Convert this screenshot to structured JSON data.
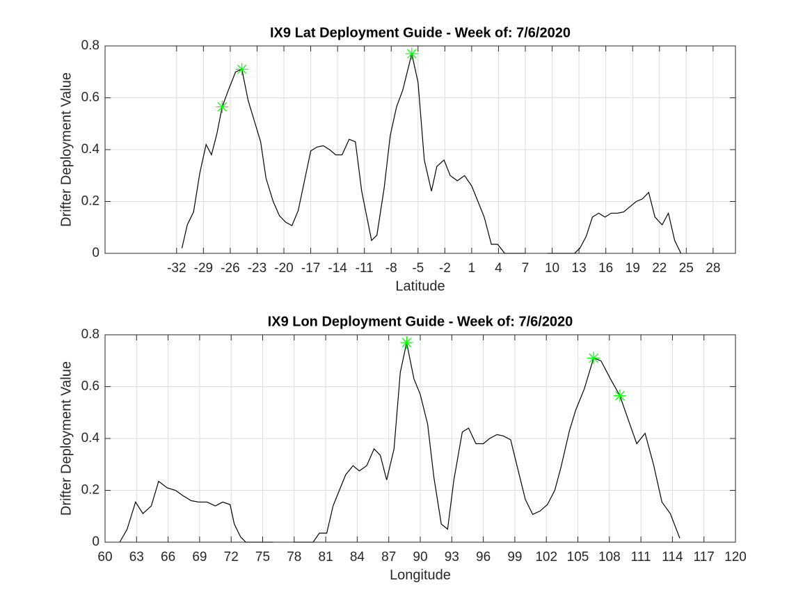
{
  "chart_data": [
    {
      "type": "line",
      "title": "IX9 Lat Deployment Guide - Week of: 7/6/2020",
      "x_label": "Latitude",
      "y_label": "Drifter Deployment Value",
      "xlim": [
        -40,
        30.5
      ],
      "xticks": [
        -32,
        -29,
        -26,
        -23,
        -20,
        -17,
        -14,
        -11,
        -8,
        -5,
        -2,
        1,
        4,
        7,
        10,
        13,
        16,
        19,
        22,
        25,
        28
      ],
      "ylim": [
        0,
        0.8
      ],
      "yticks": [
        0,
        0.2,
        0.4,
        0.6,
        0.8
      ],
      "grid": true,
      "color": "#000000",
      "x": [
        -31.4,
        -30.8,
        -30.1,
        -29.4,
        -28.7,
        -28.1,
        -27.5,
        -26.9,
        -26.2,
        -25.4,
        -24.7,
        -24.0,
        -23.3,
        -22.6,
        -22.0,
        -21.2,
        -20.5,
        -19.8,
        -19.1,
        -18.4,
        -17.7,
        -17.0,
        -16.3,
        -15.6,
        -14.9,
        -14.2,
        -13.5,
        -12.7,
        -12.0,
        -11.3,
        -10.2,
        -9.6,
        -8.8,
        -8.1,
        -7.4,
        -6.7,
        -5.7,
        -5.0,
        -4.3,
        -3.5,
        -2.9,
        -2.1,
        -1.4,
        -0.6,
        0.2,
        1.0,
        1.7,
        2.4,
        3.2,
        3.9,
        4.7,
        5.5,
        6.3,
        7.0,
        null,
        9.5,
        10.2,
        11.0,
        11.7,
        12.5,
        13.1,
        13.8,
        14.5,
        15.2,
        15.9,
        16.6,
        17.3,
        18.0,
        18.7,
        19.4,
        20.1,
        20.8,
        21.5,
        22.3,
        23.0,
        23.7,
        24.4
      ],
      "values": [
        0.02,
        0.11,
        0.16,
        0.31,
        0.42,
        0.38,
        0.46,
        0.565,
        0.63,
        0.7,
        0.71,
        0.59,
        0.51,
        0.43,
        0.29,
        0.2,
        0.145,
        0.12,
        0.107,
        0.165,
        0.28,
        0.395,
        0.41,
        0.415,
        0.4,
        0.38,
        0.38,
        0.44,
        0.43,
        0.24,
        0.05,
        0.07,
        0.25,
        0.455,
        0.565,
        0.63,
        0.77,
        0.66,
        0.36,
        0.24,
        0.335,
        0.36,
        0.3,
        0.28,
        0.3,
        0.26,
        0.2,
        0.14,
        0.035,
        0.035,
        0,
        0,
        0,
        0,
        null,
        0,
        0,
        0,
        0,
        0,
        0.02,
        0.065,
        0.14,
        0.155,
        0.14,
        0.155,
        0.155,
        0.16,
        0.18,
        0.2,
        0.21,
        0.235,
        0.14,
        0.11,
        0.155,
        0.05,
        0
      ],
      "markers": {
        "color": "#00ff00",
        "x": [
          -26.9,
          -24.7,
          -5.7
        ],
        "values": [
          0.565,
          0.71,
          0.77
        ]
      }
    },
    {
      "type": "line",
      "title": "IX9 Lon Deployment Guide - Week of: 7/6/2020",
      "x_label": "Longitude",
      "y_label": "Drifter Deployment Value",
      "xlim": [
        60,
        120
      ],
      "xticks": [
        60,
        63,
        66,
        69,
        72,
        75,
        78,
        81,
        84,
        87,
        90,
        93,
        96,
        99,
        102,
        105,
        108,
        111,
        114,
        117,
        120
      ],
      "ylim": [
        0,
        0.8
      ],
      "yticks": [
        0,
        0.2,
        0.4,
        0.6,
        0.8
      ],
      "grid": true,
      "color": "#000000",
      "x": [
        61.4,
        62.1,
        62.9,
        63.6,
        64.4,
        65.1,
        65.9,
        66.7,
        67.4,
        68.2,
        68.9,
        69.7,
        70.5,
        71.2,
        71.9,
        72.3,
        72.9,
        73.4,
        74.2,
        75.2,
        76.0,
        null,
        77.9,
        78.9,
        79.8,
        80.4,
        81.1,
        81.7,
        82.3,
        82.9,
        83.6,
        84.2,
        84.9,
        85.6,
        86.2,
        86.8,
        87.5,
        88.1,
        88.7,
        89.4,
        90.0,
        90.7,
        91.3,
        92.0,
        92.6,
        93.2,
        94.0,
        94.6,
        95.3,
        96.0,
        96.6,
        97.3,
        97.9,
        98.6,
        99.3,
        100.0,
        100.7,
        101.4,
        102.1,
        102.8,
        103.4,
        104.2,
        104.8,
        105.6,
        106.5,
        107.2,
        108.1,
        109.0,
        109.9,
        110.6,
        111.4,
        112.2,
        113.0,
        113.8,
        114.7
      ],
      "values": [
        0,
        0.05,
        0.155,
        0.11,
        0.14,
        0.235,
        0.21,
        0.2,
        0.18,
        0.16,
        0.155,
        0.155,
        0.14,
        0.155,
        0.145,
        0.07,
        0.02,
        0,
        0,
        0,
        0,
        null,
        0,
        0,
        0,
        0.035,
        0.035,
        0.14,
        0.2,
        0.26,
        0.295,
        0.275,
        0.295,
        0.36,
        0.335,
        0.24,
        0.36,
        0.655,
        0.77,
        0.63,
        0.57,
        0.455,
        0.25,
        0.07,
        0.05,
        0.24,
        0.425,
        0.44,
        0.38,
        0.38,
        0.4,
        0.415,
        0.41,
        0.395,
        0.28,
        0.165,
        0.107,
        0.12,
        0.145,
        0.2,
        0.29,
        0.43,
        0.51,
        0.59,
        0.71,
        0.7,
        0.63,
        0.565,
        0.46,
        0.38,
        0.42,
        0.3,
        0.155,
        0.11,
        0.015
      ],
      "markers": {
        "color": "#00ff00",
        "x": [
          88.7,
          106.5,
          109.0
        ],
        "values": [
          0.77,
          0.71,
          0.565
        ]
      }
    }
  ]
}
